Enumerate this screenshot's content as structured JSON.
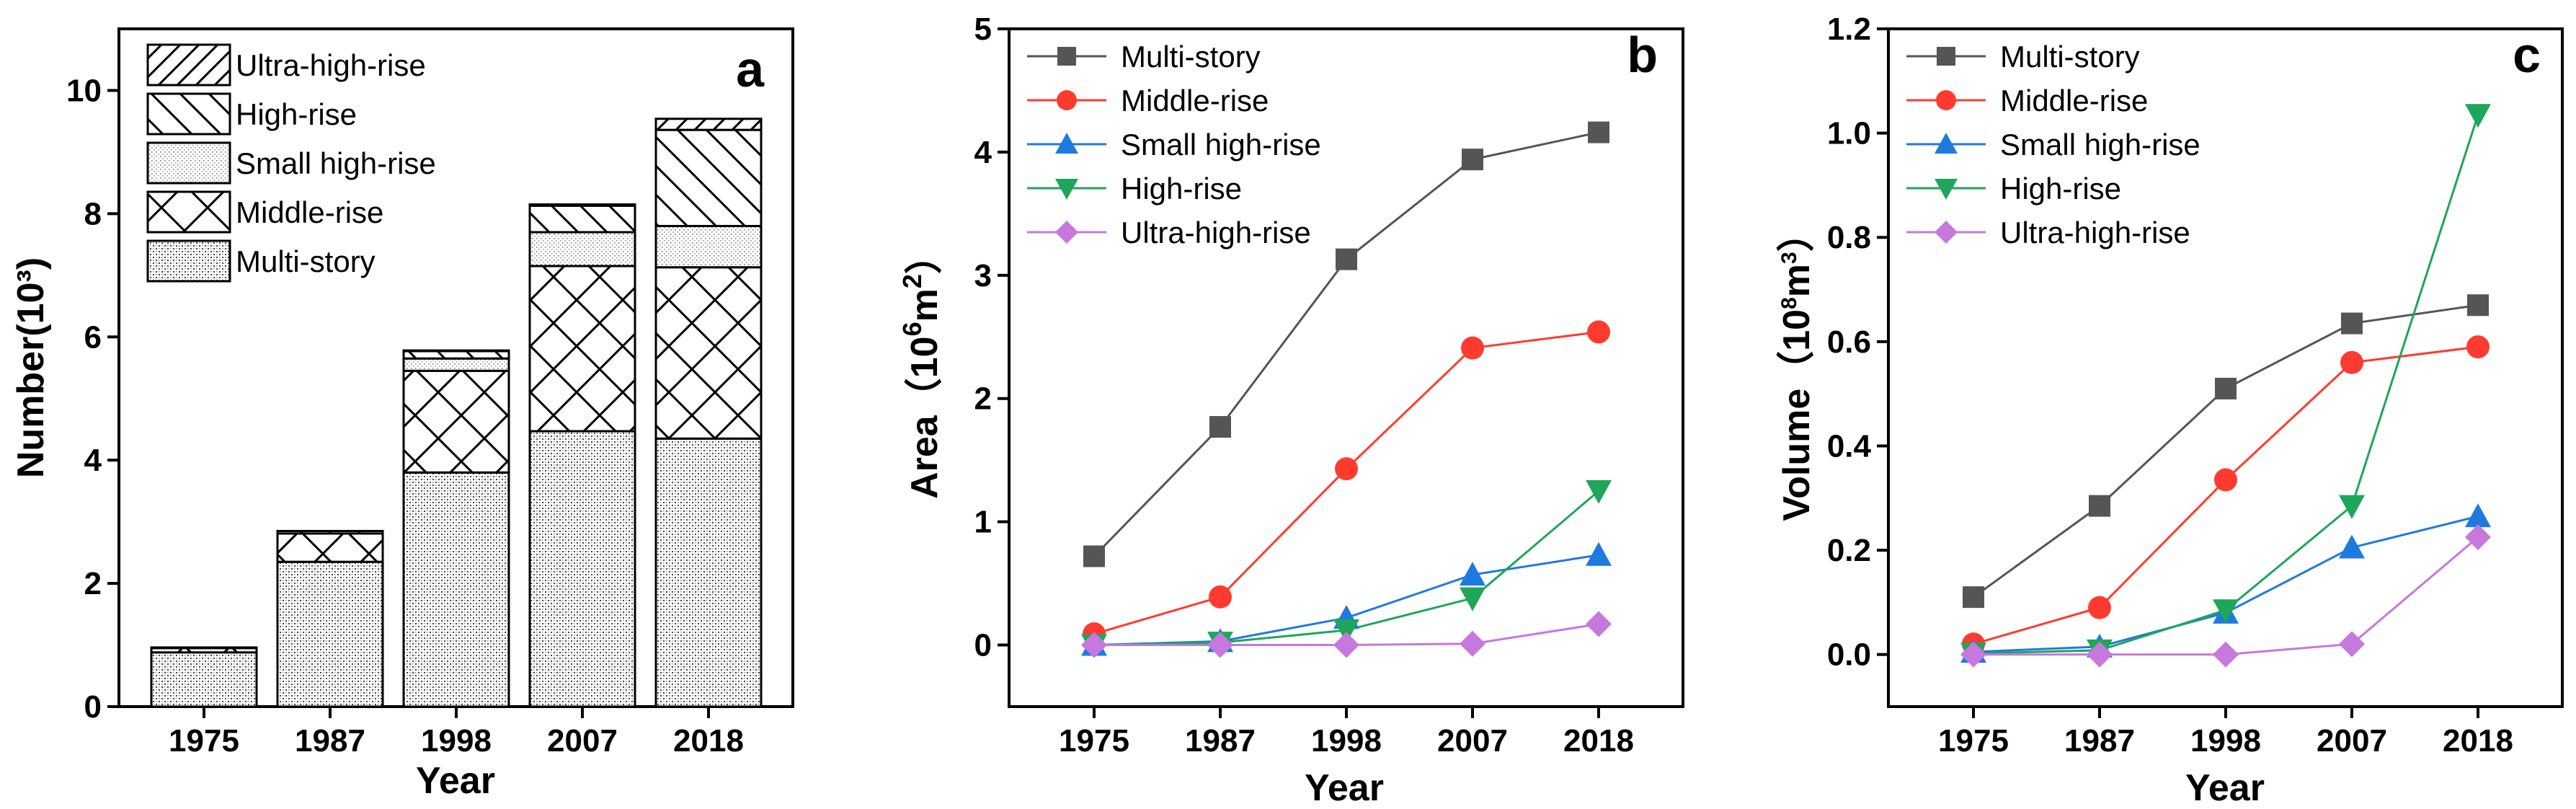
{
  "chart_data": [
    {
      "type": "bar",
      "stacked": true,
      "panel_label": "a",
      "categories": [
        "1975",
        "1987",
        "1998",
        "2007",
        "2018"
      ],
      "xlabel": "Year",
      "ylabel": "Number(10³)",
      "ylim": [
        0,
        11
      ],
      "yticks": [
        "0",
        "2",
        "4",
        "6",
        "8",
        "10"
      ],
      "legend_order": [
        4,
        3,
        2,
        1,
        0
      ],
      "legend_position": "top-left",
      "series": [
        {
          "name": "Multi-story",
          "values": [
            0.88,
            2.35,
            3.8,
            4.47,
            4.35
          ],
          "pattern": "pat-dots"
        },
        {
          "name": "Middle-rise",
          "values": [
            0.07,
            0.46,
            1.65,
            2.68,
            2.78
          ],
          "pattern": "pat-cross"
        },
        {
          "name": "Small high-rise",
          "values": [
            0.0,
            0.0,
            0.2,
            0.55,
            0.67
          ],
          "pattern": "pat-stipple"
        },
        {
          "name": "High-rise",
          "values": [
            0.01,
            0.04,
            0.12,
            0.43,
            1.56
          ],
          "pattern": "pat-back"
        },
        {
          "name": "Ultra-high-rise",
          "values": [
            0.0,
            0.0,
            0.01,
            0.02,
            0.18
          ],
          "pattern": "pat-fwd"
        }
      ]
    },
    {
      "type": "line",
      "panel_label": "b",
      "x": [
        "1975",
        "1987",
        "1998",
        "2007",
        "2018"
      ],
      "xlabel": "Year",
      "ylabel": "Area（10⁶m²）",
      "ylabel_parts": {
        "prefix": "Area（10",
        "sup": "6",
        "mid": "m",
        "sup2": "2",
        "suffix": "）"
      },
      "ylim": [
        -0.5,
        5
      ],
      "yticks": [
        "0",
        "1",
        "2",
        "3",
        "4",
        "5"
      ],
      "legend_position": "top-left",
      "series": [
        {
          "name": "Multi-story",
          "values": [
            0.72,
            1.77,
            3.13,
            3.94,
            4.16
          ],
          "color": "#555555",
          "marker": "square"
        },
        {
          "name": "Middle-rise",
          "values": [
            0.09,
            0.39,
            1.43,
            2.41,
            2.54
          ],
          "color": "#ff3b30",
          "marker": "circle"
        },
        {
          "name": "Small high-rise",
          "values": [
            0.0,
            0.03,
            0.22,
            0.57,
            0.73
          ],
          "color": "#1f7ae0",
          "marker": "triangle-up"
        },
        {
          "name": "High-rise",
          "values": [
            0.0,
            0.02,
            0.12,
            0.38,
            1.25
          ],
          "color": "#1ea65a",
          "marker": "triangle-down"
        },
        {
          "name": "Ultra-high-rise",
          "values": [
            0.0,
            0.0,
            0.0,
            0.01,
            0.17
          ],
          "color": "#c678dd",
          "marker": "diamond"
        }
      ]
    },
    {
      "type": "line",
      "panel_label": "c",
      "x": [
        "1975",
        "1987",
        "1998",
        "2007",
        "2018"
      ],
      "xlabel": "Year",
      "ylabel": "Volume（10⁸m³）",
      "ylabel_parts": {
        "prefix": "Volume（10",
        "sup": "8",
        "mid": "m",
        "sup2": "3",
        "suffix": "）"
      },
      "ylim": [
        -0.1,
        1.2
      ],
      "yticks": [
        "0.0",
        "0.2",
        "0.4",
        "0.6",
        "0.8",
        "1.0",
        "1.2"
      ],
      "legend_position": "top-left",
      "series": [
        {
          "name": "Multi-story",
          "values": [
            0.11,
            0.285,
            0.51,
            0.635,
            0.67
          ],
          "color": "#555555",
          "marker": "square"
        },
        {
          "name": "Middle-rise",
          "values": [
            0.02,
            0.09,
            0.335,
            0.56,
            0.59
          ],
          "color": "#ff3b30",
          "marker": "circle"
        },
        {
          "name": "Small high-rise",
          "values": [
            0.005,
            0.015,
            0.08,
            0.205,
            0.265
          ],
          "color": "#1f7ae0",
          "marker": "triangle-up"
        },
        {
          "name": "High-rise",
          "values": [
            0.002,
            0.008,
            0.085,
            0.285,
            1.035
          ],
          "color": "#1ea65a",
          "marker": "triangle-down"
        },
        {
          "name": "Ultra-high-rise",
          "values": [
            0.0,
            0.0,
            0.0,
            0.02,
            0.225
          ],
          "color": "#c678dd",
          "marker": "diamond"
        }
      ]
    }
  ]
}
